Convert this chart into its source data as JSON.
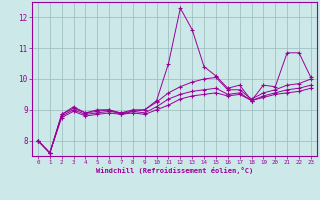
{
  "xlabel": "Windchill (Refroidissement éolien,°C)",
  "background_color": "#cce8e8",
  "line_color": "#990099",
  "grid_color": "#99bbbb",
  "x_values": [
    0,
    1,
    2,
    3,
    4,
    5,
    6,
    7,
    8,
    9,
    10,
    11,
    12,
    13,
    14,
    15,
    16,
    17,
    18,
    19,
    20,
    21,
    22,
    23
  ],
  "line1": [
    8.0,
    7.6,
    8.85,
    9.1,
    8.9,
    9.0,
    9.0,
    8.9,
    9.0,
    9.0,
    9.3,
    10.5,
    12.3,
    11.6,
    10.4,
    10.1,
    9.7,
    9.8,
    9.3,
    9.8,
    9.75,
    10.85,
    10.85,
    10.05
  ],
  "line2": [
    8.0,
    7.6,
    8.85,
    9.05,
    8.9,
    8.95,
    9.0,
    8.85,
    8.95,
    9.0,
    9.25,
    9.55,
    9.75,
    9.9,
    10.0,
    10.05,
    9.65,
    9.65,
    9.35,
    9.55,
    9.65,
    9.8,
    9.85,
    10.0
  ],
  "line3": [
    8.0,
    7.6,
    8.8,
    9.0,
    8.85,
    8.9,
    8.95,
    8.9,
    8.95,
    8.9,
    9.1,
    9.35,
    9.5,
    9.6,
    9.65,
    9.7,
    9.5,
    9.55,
    9.3,
    9.45,
    9.55,
    9.65,
    9.7,
    9.8
  ],
  "line4": [
    8.0,
    7.6,
    8.75,
    8.95,
    8.8,
    8.85,
    8.9,
    8.85,
    8.9,
    8.85,
    9.0,
    9.15,
    9.35,
    9.45,
    9.5,
    9.55,
    9.45,
    9.5,
    9.3,
    9.4,
    9.5,
    9.55,
    9.6,
    9.7
  ],
  "ylim": [
    7.5,
    12.5
  ],
  "yticks": [
    8,
    9,
    10,
    11,
    12
  ],
  "xticks": [
    0,
    1,
    2,
    3,
    4,
    5,
    6,
    7,
    8,
    9,
    10,
    11,
    12,
    13,
    14,
    15,
    16,
    17,
    18,
    19,
    20,
    21,
    22,
    23
  ]
}
